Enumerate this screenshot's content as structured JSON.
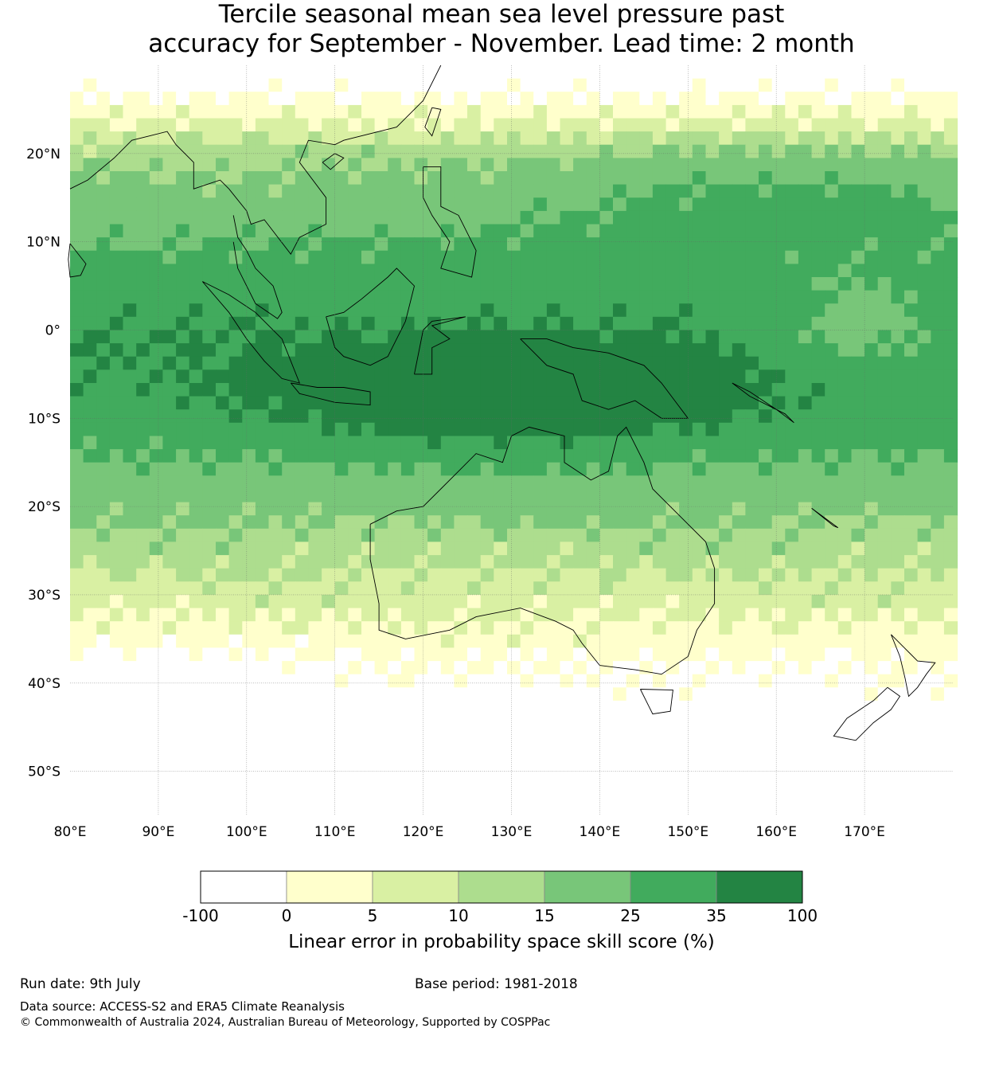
{
  "title_line1": "Tercile seasonal mean sea level pressure past",
  "title_line2": "accuracy for September - November. Lead time: 2 month",
  "map": {
    "lon_range": [
      80,
      180
    ],
    "lat_range": [
      -55,
      30
    ],
    "lon_ticks": [
      "80°E",
      "90°E",
      "100°E",
      "110°E",
      "120°E",
      "130°E",
      "140°E",
      "150°E",
      "160°E",
      "170°E"
    ],
    "lat_ticks": [
      "20°N",
      "10°N",
      "0°",
      "10°S",
      "20°S",
      "30°S",
      "40°S",
      "50°S"
    ],
    "gridlines": true
  },
  "colorbar": {
    "labels": [
      "-100",
      "0",
      "5",
      "10",
      "15",
      "25",
      "35",
      "100"
    ],
    "colors": [
      "#ffffff",
      "#ffffcc",
      "#d9f0a3",
      "#addd8e",
      "#78c679",
      "#41ab5d",
      "#238443"
    ],
    "title": "Linear error in probability space skill score (%)"
  },
  "footer": {
    "run_date": "Run date: 9th July",
    "base_period": "Base period: 1981-2018",
    "data_source": "Data source: ACCESS-S2 and ERA5 Climate Reanalysis",
    "copyright": "© Commonwealth of Australia 2024, Australian Bureau of Meteorology, Supported by COSPPac"
  }
}
